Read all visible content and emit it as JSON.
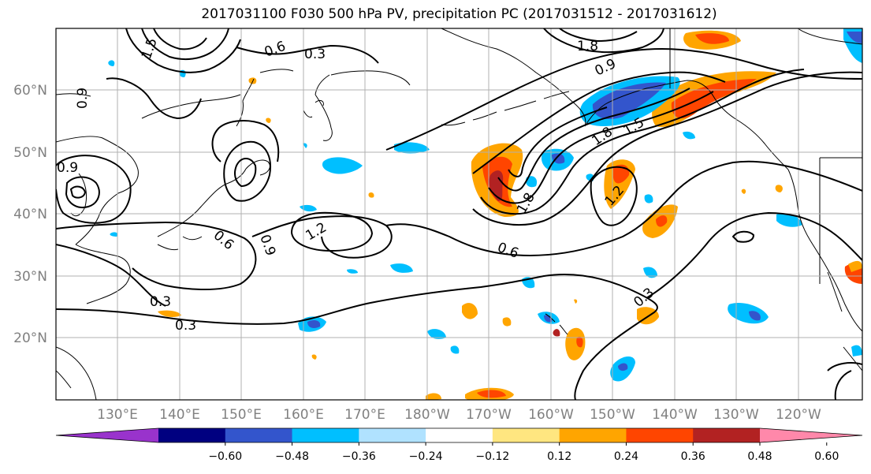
{
  "title": "2017031100 F030 500 hPa PV, precipitation PC (2017031512 - 2017031612)",
  "lat_labels": [
    "60°N",
    "50°N",
    "40°N",
    "30°N",
    "20°N"
  ],
  "lon_labels": [
    "130°E",
    "140°E",
    "150°E",
    "160°E",
    "170°E",
    "180°W",
    "170°W",
    "160°W",
    "150°W",
    "140°W",
    "130°W",
    "120°W"
  ],
  "contour_labels": [
    "0.3",
    "0.3",
    "0.3",
    "0.6",
    "0.6",
    "0.6",
    "0.9",
    "0.9",
    "0.9",
    "1.2",
    "1.2",
    "1.5",
    "1.5",
    "1.8",
    "1.8",
    "1.8",
    "0.9",
    "0.3"
  ],
  "colorbar": {
    "ticks": [
      "−0.60",
      "−0.48",
      "−0.36",
      "−0.24",
      "−0.12",
      "0.12",
      "0.24",
      "0.36",
      "0.48",
      "0.60"
    ],
    "colors": [
      "#9933cc",
      "#000080",
      "#3355cc",
      "#00bfff",
      "#b0e2ff",
      "#ffffff",
      "#ffe680",
      "#ffa500",
      "#ff4500",
      "#b22222",
      "#ff88aa"
    ]
  }
}
